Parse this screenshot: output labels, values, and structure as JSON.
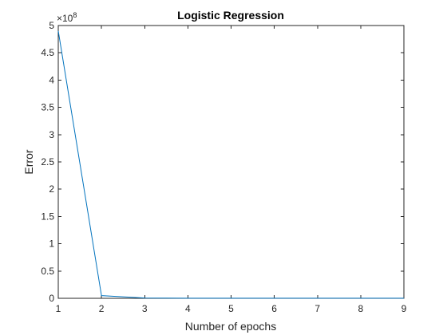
{
  "chart_data": {
    "type": "line",
    "title": "Logistic Regression",
    "xlabel": "Number of epochs",
    "ylabel": "Error",
    "y_exponent_label": "×10",
    "y_exponent_value": "8",
    "y_multiplier": 100000000,
    "xlim": [
      1,
      9
    ],
    "ylim": [
      0,
      5
    ],
    "x_ticks": [
      1,
      2,
      3,
      4,
      5,
      6,
      7,
      8,
      9
    ],
    "y_ticks": [
      0,
      0.5,
      1,
      1.5,
      2,
      2.5,
      3,
      3.5,
      4,
      4.5,
      5
    ],
    "x_tick_labels": [
      "1",
      "2",
      "3",
      "4",
      "5",
      "6",
      "7",
      "8",
      "9"
    ],
    "y_tick_labels": [
      "0",
      "0.5",
      "1",
      "1.5",
      "2",
      "2.5",
      "3",
      "3.5",
      "4",
      "4.5",
      "5"
    ],
    "grid": false,
    "line_color": "#0072BD",
    "series": [
      {
        "x": [
          1,
          2,
          3,
          4,
          5,
          6,
          7,
          8,
          9
        ],
        "values": [
          4.9,
          0.05,
          0.005,
          0.002,
          0.001,
          0.001,
          0.001,
          0.001,
          0.001
        ]
      }
    ]
  }
}
